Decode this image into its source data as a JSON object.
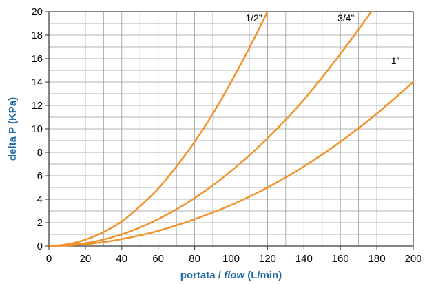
{
  "chart_data": {
    "type": "line",
    "title": "",
    "xlabel": {
      "prefix": "portata / ",
      "italic": "flow",
      "suffix": " (L/min)"
    },
    "ylabel": "delta P (KPa)",
    "xlim": [
      0,
      200
    ],
    "ylim": [
      0,
      20
    ],
    "x_ticks": [
      0,
      20,
      40,
      60,
      80,
      100,
      120,
      140,
      160,
      180,
      200
    ],
    "y_ticks": [
      0,
      2,
      4,
      6,
      8,
      10,
      12,
      14,
      16,
      18,
      20
    ],
    "grid": true,
    "line_color": "#f0932b",
    "label_color": "#1f6aa5",
    "series": [
      {
        "name": "1/2”",
        "x": [
          0,
          10,
          20,
          30,
          40,
          50,
          60,
          70,
          80,
          90,
          100,
          110,
          120
        ],
        "y": [
          0,
          0.15,
          0.55,
          1.2,
          2.1,
          3.4,
          4.9,
          6.8,
          8.9,
          11.3,
          14.0,
          16.9,
          20.0
        ]
      },
      {
        "name": "3/4”",
        "x": [
          0,
          20,
          40,
          60,
          80,
          100,
          120,
          140,
          160,
          177
        ],
        "y": [
          0,
          0.25,
          1.0,
          2.3,
          4.1,
          6.4,
          9.2,
          12.5,
          16.4,
          20.0
        ]
      },
      {
        "name": "1”",
        "x": [
          0,
          20,
          40,
          60,
          80,
          100,
          120,
          140,
          160,
          180,
          200
        ],
        "y": [
          0,
          0.15,
          0.6,
          1.3,
          2.3,
          3.5,
          5.0,
          6.8,
          8.9,
          11.3,
          14.0
        ]
      }
    ]
  }
}
